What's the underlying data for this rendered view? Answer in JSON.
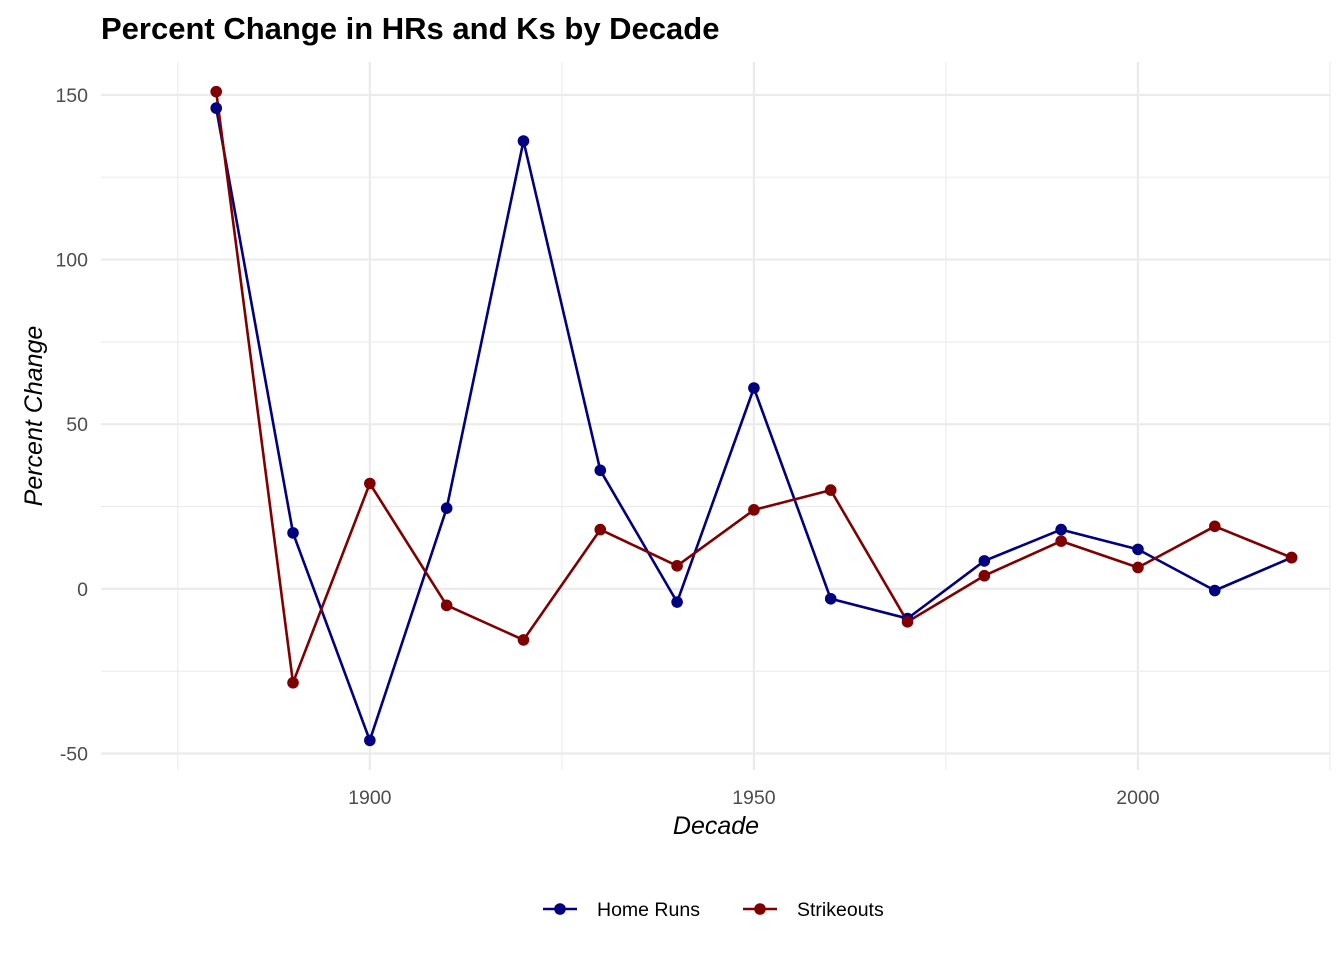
{
  "chart_data": {
    "type": "line",
    "title": "Percent Change in HRs and Ks by Decade",
    "xlabel": "Decade",
    "ylabel": "Percent Change",
    "xlim": [
      1865,
      2025
    ],
    "ylim": [
      -55,
      160
    ],
    "x_ticks": [
      1900,
      1950,
      2000
    ],
    "x_minor_ticks": [
      1875,
      1925,
      1975,
      2025
    ],
    "y_ticks": [
      -50,
      0,
      50,
      100,
      150
    ],
    "y_minor_ticks": [
      -25,
      25,
      75,
      125
    ],
    "grid": true,
    "legend_position": "bottom",
    "x": [
      1880,
      1890,
      1900,
      1910,
      1920,
      1930,
      1940,
      1950,
      1960,
      1970,
      1980,
      1990,
      2000,
      2010,
      2020
    ],
    "series": [
      {
        "name": "Home Runs",
        "color": "#000080",
        "values": [
          146,
          17,
          -46,
          24.5,
          136,
          36,
          -4,
          61,
          -3,
          -9,
          8.5,
          18,
          12,
          -0.5,
          9.5
        ]
      },
      {
        "name": "Strikeouts",
        "color": "#800000",
        "values": [
          151,
          -28.5,
          32,
          -5,
          -15.5,
          18,
          7,
          24,
          30,
          -10,
          4,
          14.5,
          6.5,
          19,
          9.5
        ]
      }
    ]
  }
}
